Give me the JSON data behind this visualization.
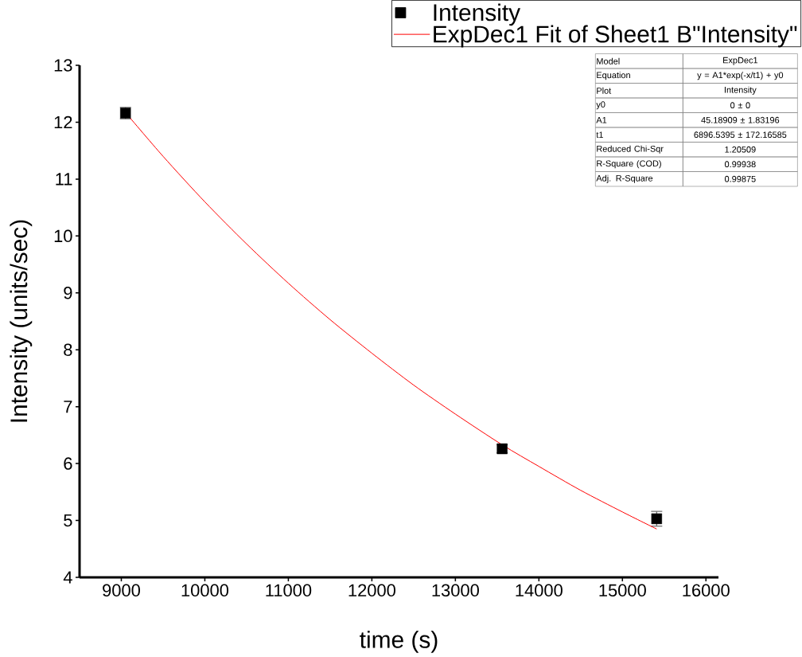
{
  "chart_data": {
    "type": "scatter",
    "xlabel": "time (s)",
    "ylabel": "Intensity (units/sec)",
    "xlim": [
      8500,
      16150
    ],
    "ylim": [
      4,
      13
    ],
    "xticks": [
      9000,
      10000,
      11000,
      12000,
      13000,
      14000,
      15000,
      16000
    ],
    "yticks": [
      4,
      5,
      6,
      7,
      8,
      9,
      10,
      11,
      12,
      13
    ],
    "grid": false,
    "legend": "top right",
    "series": [
      {
        "name": "Intensity",
        "type": "scatter",
        "marker": "square",
        "color": "#000000",
        "x": [
          9050,
          13560,
          15410
        ],
        "values": [
          12.16,
          6.26,
          5.03
        ],
        "errors": [
          0.1,
          0.07,
          0.13
        ]
      },
      {
        "name": "ExpDec1 Fit of Sheet1 B\"Intensity\"",
        "type": "line",
        "marker": "none",
        "line_style": "solid",
        "color": "#ff0000",
        "x": [
          9050,
          9500,
          10000,
          10500,
          11000,
          11500,
          12000,
          12500,
          13000,
          13560,
          14000,
          14500,
          15000,
          15410
        ],
        "values": [
          12.17,
          11.4,
          10.6,
          9.86,
          9.17,
          8.53,
          7.94,
          7.38,
          6.87,
          6.33,
          5.95,
          5.53,
          5.15,
          4.85
        ]
      }
    ],
    "annotations": [
      "Model",
      "ExpDec1",
      "Equation",
      "y = A1*exp(-x/t1) + y0",
      "Plot",
      "Intensity",
      "y0",
      "0 ± 0",
      "A1",
      "45.18909 ± 1.83196",
      "t1",
      "6896.5395 ± 172.16585",
      "Reduced Chi-Sqr",
      "1.20509",
      "R-Square (COD)",
      "0.99938",
      "Adj. R-Square",
      "0.99875"
    ]
  }
}
